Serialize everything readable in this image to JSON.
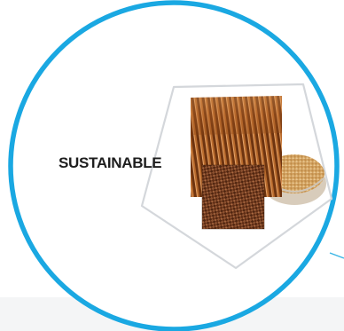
{
  "badge": {
    "label": "SUSTAINABLE",
    "ring_color": "#1aa8e2",
    "connector_color": "#3bb6e6",
    "pentagon_color": "#d4d7db",
    "icons": {
      "material": "corrugated-cardboard-icon",
      "fiber": "wood-fiber-bowl-icon",
      "texture": "woven-fiber-mesh-icon"
    }
  }
}
